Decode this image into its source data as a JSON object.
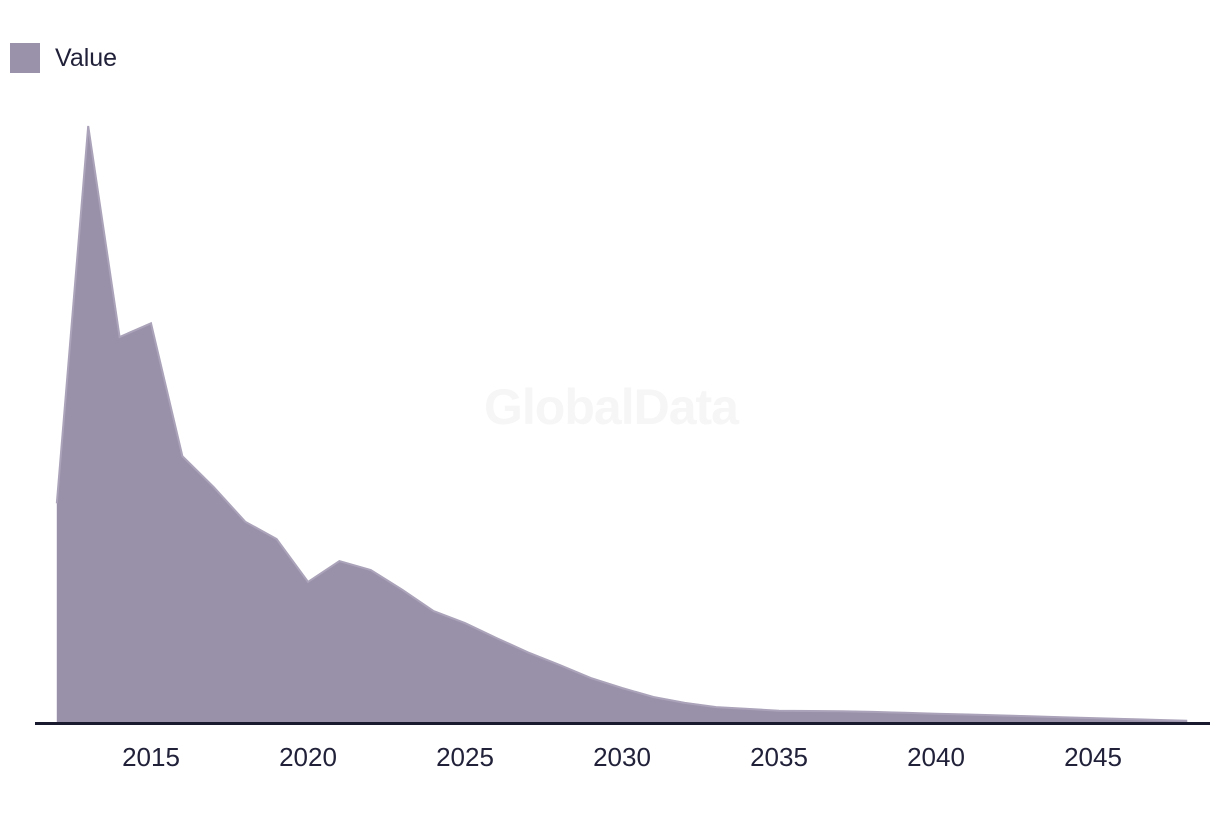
{
  "legend": {
    "label": "Value",
    "swatch_color": "#9a92ab"
  },
  "watermark": "GlobalData",
  "colors": {
    "background": "#ffffff",
    "area_fill": "#9991a9",
    "area_edge": "#aba3b9",
    "axis_line": "#1a1a2f",
    "tick_text": "#21213a",
    "watermark": "#f6f6f6"
  },
  "chart_data": {
    "type": "area",
    "title": "",
    "xlabel": "",
    "ylabel": "",
    "series_name": "Value",
    "x": [
      2012,
      2013,
      2014,
      2015,
      2016,
      2017,
      2018,
      2019,
      2020,
      2021,
      2022,
      2023,
      2024,
      2025,
      2026,
      2027,
      2028,
      2029,
      2030,
      2031,
      2032,
      2033,
      2034,
      2035,
      2036,
      2037,
      2038,
      2039,
      2040,
      2041,
      2042,
      2043,
      2044,
      2045,
      2046,
      2047,
      2048
    ],
    "values": [
      36.7,
      100,
      64.6,
      66.9,
      44.6,
      39.4,
      33.6,
      30.7,
      23.5,
      27.0,
      25.5,
      22.2,
      18.6,
      16.6,
      14.1,
      11.7,
      9.6,
      7.4,
      5.7,
      4.2,
      3.2,
      2.5,
      2.2,
      1.9,
      1.85,
      1.8,
      1.7,
      1.55,
      1.4,
      1.25,
      1.1,
      0.95,
      0.8,
      0.65,
      0.5,
      0.35,
      0.2
    ],
    "values_unit": "relative units (no y-axis shown; peak normalized to 100)",
    "x_ticks": [
      2015,
      2020,
      2025,
      2030,
      2035,
      2040,
      2045
    ],
    "x_range": [
      2012,
      2048
    ],
    "ylim": [
      0,
      105
    ],
    "grid": false,
    "y_axis_visible": false,
    "legend_position": "top-left"
  }
}
